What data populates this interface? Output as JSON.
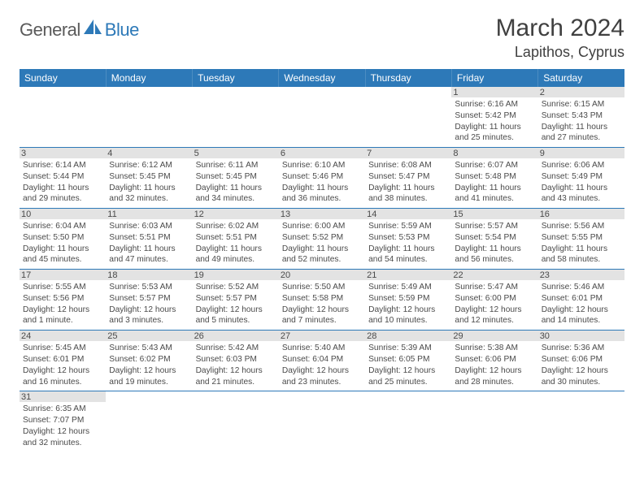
{
  "logo": {
    "text1": "General",
    "text2": "Blue"
  },
  "title": "March 2024",
  "location": "Lapithos, Cyprus",
  "colors": {
    "header_bg": "#2d79b8",
    "header_text": "#ffffff",
    "daynum_bg": "#e3e3e3",
    "text": "#4a4a4a",
    "border": "#2d79b8",
    "logo_color": "#2d79b8"
  },
  "day_headers": [
    "Sunday",
    "Monday",
    "Tuesday",
    "Wednesday",
    "Thursday",
    "Friday",
    "Saturday"
  ],
  "weeks": [
    [
      {
        "day": "",
        "lines": []
      },
      {
        "day": "",
        "lines": []
      },
      {
        "day": "",
        "lines": []
      },
      {
        "day": "",
        "lines": []
      },
      {
        "day": "",
        "lines": []
      },
      {
        "day": "1",
        "lines": [
          "Sunrise: 6:16 AM",
          "Sunset: 5:42 PM",
          "Daylight: 11 hours",
          "and 25 minutes."
        ]
      },
      {
        "day": "2",
        "lines": [
          "Sunrise: 6:15 AM",
          "Sunset: 5:43 PM",
          "Daylight: 11 hours",
          "and 27 minutes."
        ]
      }
    ],
    [
      {
        "day": "3",
        "lines": [
          "Sunrise: 6:14 AM",
          "Sunset: 5:44 PM",
          "Daylight: 11 hours",
          "and 29 minutes."
        ]
      },
      {
        "day": "4",
        "lines": [
          "Sunrise: 6:12 AM",
          "Sunset: 5:45 PM",
          "Daylight: 11 hours",
          "and 32 minutes."
        ]
      },
      {
        "day": "5",
        "lines": [
          "Sunrise: 6:11 AM",
          "Sunset: 5:45 PM",
          "Daylight: 11 hours",
          "and 34 minutes."
        ]
      },
      {
        "day": "6",
        "lines": [
          "Sunrise: 6:10 AM",
          "Sunset: 5:46 PM",
          "Daylight: 11 hours",
          "and 36 minutes."
        ]
      },
      {
        "day": "7",
        "lines": [
          "Sunrise: 6:08 AM",
          "Sunset: 5:47 PM",
          "Daylight: 11 hours",
          "and 38 minutes."
        ]
      },
      {
        "day": "8",
        "lines": [
          "Sunrise: 6:07 AM",
          "Sunset: 5:48 PM",
          "Daylight: 11 hours",
          "and 41 minutes."
        ]
      },
      {
        "day": "9",
        "lines": [
          "Sunrise: 6:06 AM",
          "Sunset: 5:49 PM",
          "Daylight: 11 hours",
          "and 43 minutes."
        ]
      }
    ],
    [
      {
        "day": "10",
        "lines": [
          "Sunrise: 6:04 AM",
          "Sunset: 5:50 PM",
          "Daylight: 11 hours",
          "and 45 minutes."
        ]
      },
      {
        "day": "11",
        "lines": [
          "Sunrise: 6:03 AM",
          "Sunset: 5:51 PM",
          "Daylight: 11 hours",
          "and 47 minutes."
        ]
      },
      {
        "day": "12",
        "lines": [
          "Sunrise: 6:02 AM",
          "Sunset: 5:51 PM",
          "Daylight: 11 hours",
          "and 49 minutes."
        ]
      },
      {
        "day": "13",
        "lines": [
          "Sunrise: 6:00 AM",
          "Sunset: 5:52 PM",
          "Daylight: 11 hours",
          "and 52 minutes."
        ]
      },
      {
        "day": "14",
        "lines": [
          "Sunrise: 5:59 AM",
          "Sunset: 5:53 PM",
          "Daylight: 11 hours",
          "and 54 minutes."
        ]
      },
      {
        "day": "15",
        "lines": [
          "Sunrise: 5:57 AM",
          "Sunset: 5:54 PM",
          "Daylight: 11 hours",
          "and 56 minutes."
        ]
      },
      {
        "day": "16",
        "lines": [
          "Sunrise: 5:56 AM",
          "Sunset: 5:55 PM",
          "Daylight: 11 hours",
          "and 58 minutes."
        ]
      }
    ],
    [
      {
        "day": "17",
        "lines": [
          "Sunrise: 5:55 AM",
          "Sunset: 5:56 PM",
          "Daylight: 12 hours",
          "and 1 minute."
        ]
      },
      {
        "day": "18",
        "lines": [
          "Sunrise: 5:53 AM",
          "Sunset: 5:57 PM",
          "Daylight: 12 hours",
          "and 3 minutes."
        ]
      },
      {
        "day": "19",
        "lines": [
          "Sunrise: 5:52 AM",
          "Sunset: 5:57 PM",
          "Daylight: 12 hours",
          "and 5 minutes."
        ]
      },
      {
        "day": "20",
        "lines": [
          "Sunrise: 5:50 AM",
          "Sunset: 5:58 PM",
          "Daylight: 12 hours",
          "and 7 minutes."
        ]
      },
      {
        "day": "21",
        "lines": [
          "Sunrise: 5:49 AM",
          "Sunset: 5:59 PM",
          "Daylight: 12 hours",
          "and 10 minutes."
        ]
      },
      {
        "day": "22",
        "lines": [
          "Sunrise: 5:47 AM",
          "Sunset: 6:00 PM",
          "Daylight: 12 hours",
          "and 12 minutes."
        ]
      },
      {
        "day": "23",
        "lines": [
          "Sunrise: 5:46 AM",
          "Sunset: 6:01 PM",
          "Daylight: 12 hours",
          "and 14 minutes."
        ]
      }
    ],
    [
      {
        "day": "24",
        "lines": [
          "Sunrise: 5:45 AM",
          "Sunset: 6:01 PM",
          "Daylight: 12 hours",
          "and 16 minutes."
        ]
      },
      {
        "day": "25",
        "lines": [
          "Sunrise: 5:43 AM",
          "Sunset: 6:02 PM",
          "Daylight: 12 hours",
          "and 19 minutes."
        ]
      },
      {
        "day": "26",
        "lines": [
          "Sunrise: 5:42 AM",
          "Sunset: 6:03 PM",
          "Daylight: 12 hours",
          "and 21 minutes."
        ]
      },
      {
        "day": "27",
        "lines": [
          "Sunrise: 5:40 AM",
          "Sunset: 6:04 PM",
          "Daylight: 12 hours",
          "and 23 minutes."
        ]
      },
      {
        "day": "28",
        "lines": [
          "Sunrise: 5:39 AM",
          "Sunset: 6:05 PM",
          "Daylight: 12 hours",
          "and 25 minutes."
        ]
      },
      {
        "day": "29",
        "lines": [
          "Sunrise: 5:38 AM",
          "Sunset: 6:06 PM",
          "Daylight: 12 hours",
          "and 28 minutes."
        ]
      },
      {
        "day": "30",
        "lines": [
          "Sunrise: 5:36 AM",
          "Sunset: 6:06 PM",
          "Daylight: 12 hours",
          "and 30 minutes."
        ]
      }
    ],
    [
      {
        "day": "31",
        "lines": [
          "Sunrise: 6:35 AM",
          "Sunset: 7:07 PM",
          "Daylight: 12 hours",
          "and 32 minutes."
        ]
      },
      {
        "day": "",
        "lines": []
      },
      {
        "day": "",
        "lines": []
      },
      {
        "day": "",
        "lines": []
      },
      {
        "day": "",
        "lines": []
      },
      {
        "day": "",
        "lines": []
      },
      {
        "day": "",
        "lines": []
      }
    ]
  ]
}
